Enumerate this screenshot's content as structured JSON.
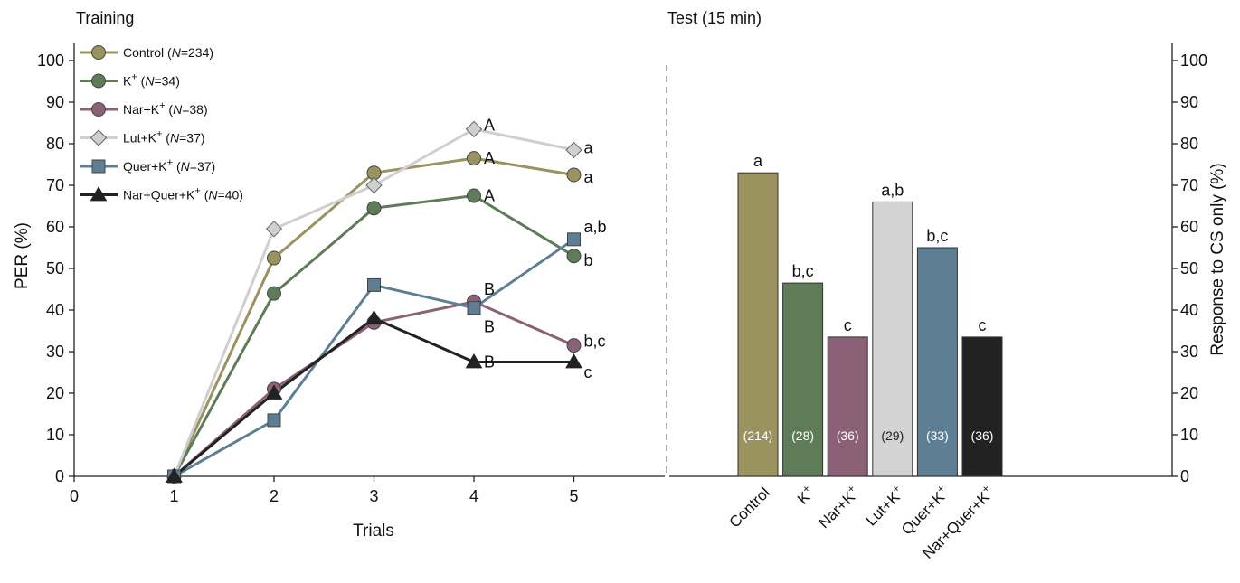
{
  "chart_data": [
    {
      "type": "line",
      "panel_title": "Training",
      "xlabel": "Trials",
      "ylabel": "PER (%)",
      "xlim": [
        0,
        5.9
      ],
      "ylim": [
        0,
        100
      ],
      "xticks": [
        "0",
        "1",
        "2",
        "3",
        "4",
        "5"
      ],
      "yticks": [
        "0",
        "10",
        "20",
        "30",
        "40",
        "50",
        "60",
        "70",
        "80",
        "90",
        "100"
      ],
      "legend_position": "top-left",
      "x": [
        1,
        2,
        3,
        4,
        5
      ],
      "series": [
        {
          "name": "Control",
          "n_text": "N",
          "n_value": "=234",
          "marker": "circle",
          "color": "#9A9360",
          "values": [
            0,
            52.5,
            73,
            76.5,
            72.5
          ]
        },
        {
          "name": "K",
          "sup": "+",
          "n_text": "N",
          "n_value": "=34",
          "marker": "circle",
          "color": "#5F7C59",
          "values": [
            0,
            44,
            64.5,
            67.5,
            53
          ]
        },
        {
          "name": "Nar+K",
          "sup": "+",
          "n_text": "N",
          "n_value": "=38",
          "marker": "circle",
          "color": "#8B6177",
          "values": [
            0,
            21,
            37,
            42,
            31.5
          ]
        },
        {
          "name": "Lut+K",
          "sup": "+",
          "n_text": "N",
          "n_value": "=37",
          "marker": "diamond",
          "color": "#CFCFCF",
          "values": [
            0,
            59.5,
            70,
            83.5,
            78.5
          ]
        },
        {
          "name": "Quer+K",
          "sup": "+",
          "n_text": "N",
          "n_value": "=37",
          "marker": "square",
          "color": "#5E7F93",
          "values": [
            0,
            13.5,
            46,
            40.5,
            57
          ]
        },
        {
          "name": "Nar+Quer+K",
          "sup": "+",
          "n_text": "N",
          "n_value": "=40",
          "marker": "triangle",
          "color": "#222222",
          "values": [
            0,
            20,
            38,
            27.5,
            27.5
          ]
        }
      ],
      "annotations": [
        {
          "text": "A",
          "x": 4,
          "y": 84.5
        },
        {
          "text": "A",
          "x": 4,
          "y": 76.5
        },
        {
          "text": "A",
          "x": 4,
          "y": 67.5
        },
        {
          "text": "B",
          "x": 4,
          "y": 45
        },
        {
          "text": "B",
          "x": 4,
          "y": 36
        },
        {
          "text": "B",
          "x": 4,
          "y": 27.5
        },
        {
          "text": "a",
          "x": 5,
          "y": 79
        },
        {
          "text": "a",
          "x": 5,
          "y": 72
        },
        {
          "text": "a,b",
          "x": 5,
          "y": 60
        },
        {
          "text": "b",
          "x": 5,
          "y": 52
        },
        {
          "text": "b,c",
          "x": 5,
          "y": 32.5
        },
        {
          "text": "c",
          "x": 5,
          "y": 25
        }
      ]
    },
    {
      "type": "bar",
      "panel_title": "Test (15 min)",
      "ylabel": "Response to CS only (%)",
      "ylim": [
        0,
        100
      ],
      "yticks": [
        "0",
        "10",
        "20",
        "30",
        "40",
        "50",
        "60",
        "70",
        "80",
        "90",
        "100"
      ],
      "categories": [
        {
          "base": "Control",
          "sup": ""
        },
        {
          "base": "K",
          "sup": "+"
        },
        {
          "base": "Nar+K",
          "sup": "+"
        },
        {
          "base": "Lut+K",
          "sup": "+"
        },
        {
          "base": "Quer+K",
          "sup": "+"
        },
        {
          "base": "Nar+Quer+K",
          "sup": "+"
        }
      ],
      "values": [
        73,
        46.5,
        33.5,
        66,
        55,
        33.5
      ],
      "colors": [
        "#9A9360",
        "#5F7C59",
        "#8B6177",
        "#D3D3D3",
        "#5E7F93",
        "#222222"
      ],
      "significance": [
        "a",
        "b,c",
        "c",
        "a,b",
        "b,c",
        "c"
      ],
      "n_labels": [
        "(214)",
        "(28)",
        "(36)",
        "(29)",
        "(33)",
        "(36)"
      ]
    }
  ]
}
